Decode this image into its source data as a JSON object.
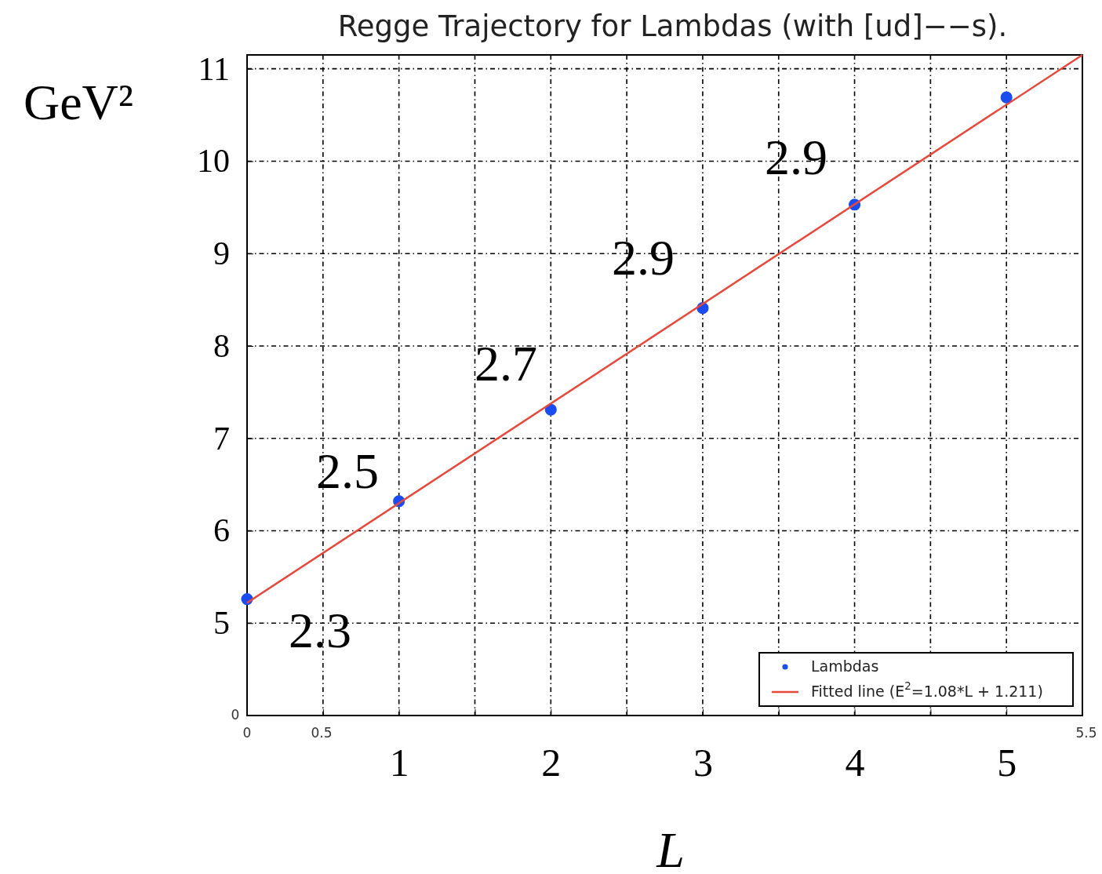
{
  "chart_data": {
    "type": "scatter",
    "title": "Regge Trajectory for Lambdas (with [ud]−−s).",
    "xlabel": "L",
    "ylabel": "GeV²",
    "xlim": [
      0,
      5.5
    ],
    "ylim": [
      4,
      11.15
    ],
    "xticks": [
      {
        "value": 0,
        "label": null
      },
      {
        "value": 0.5,
        "label": null
      },
      1,
      {
        "value": 1.5,
        "label": null
      },
      2,
      {
        "value": 2.5,
        "label": null
      },
      3,
      {
        "value": 3.5,
        "label": null
      },
      4,
      {
        "value": 4.5,
        "label": null
      },
      5,
      {
        "value": 5.5,
        "label": null
      }
    ],
    "yticks": [
      5,
      6,
      7,
      8,
      9,
      10,
      11
    ],
    "grid": true,
    "legend": "bottom right",
    "marker": "circle",
    "series": [
      {
        "name": "Lambdas",
        "color": "#1a4cf0",
        "x": [
          0,
          1,
          2,
          3,
          4,
          5
        ],
        "values": [
          5.26,
          6.32,
          7.31,
          8.41,
          9.53,
          10.69
        ]
      },
      {
        "name": "Fitted line (E$^{2}$=1.08*L + 1.211)",
        "type": "line",
        "color": "#e8483a",
        "line_style": "solid",
        "marker": "none",
        "x": [
          0,
          5.5
        ],
        "values": [
          5.22,
          11.15
        ]
      }
    ],
    "annotations": [
      "2.3",
      "2.5",
      "2.7",
      "2.9",
      "2.9",
      "0",
      "0",
      "0.5",
      "5.5"
    ]
  }
}
